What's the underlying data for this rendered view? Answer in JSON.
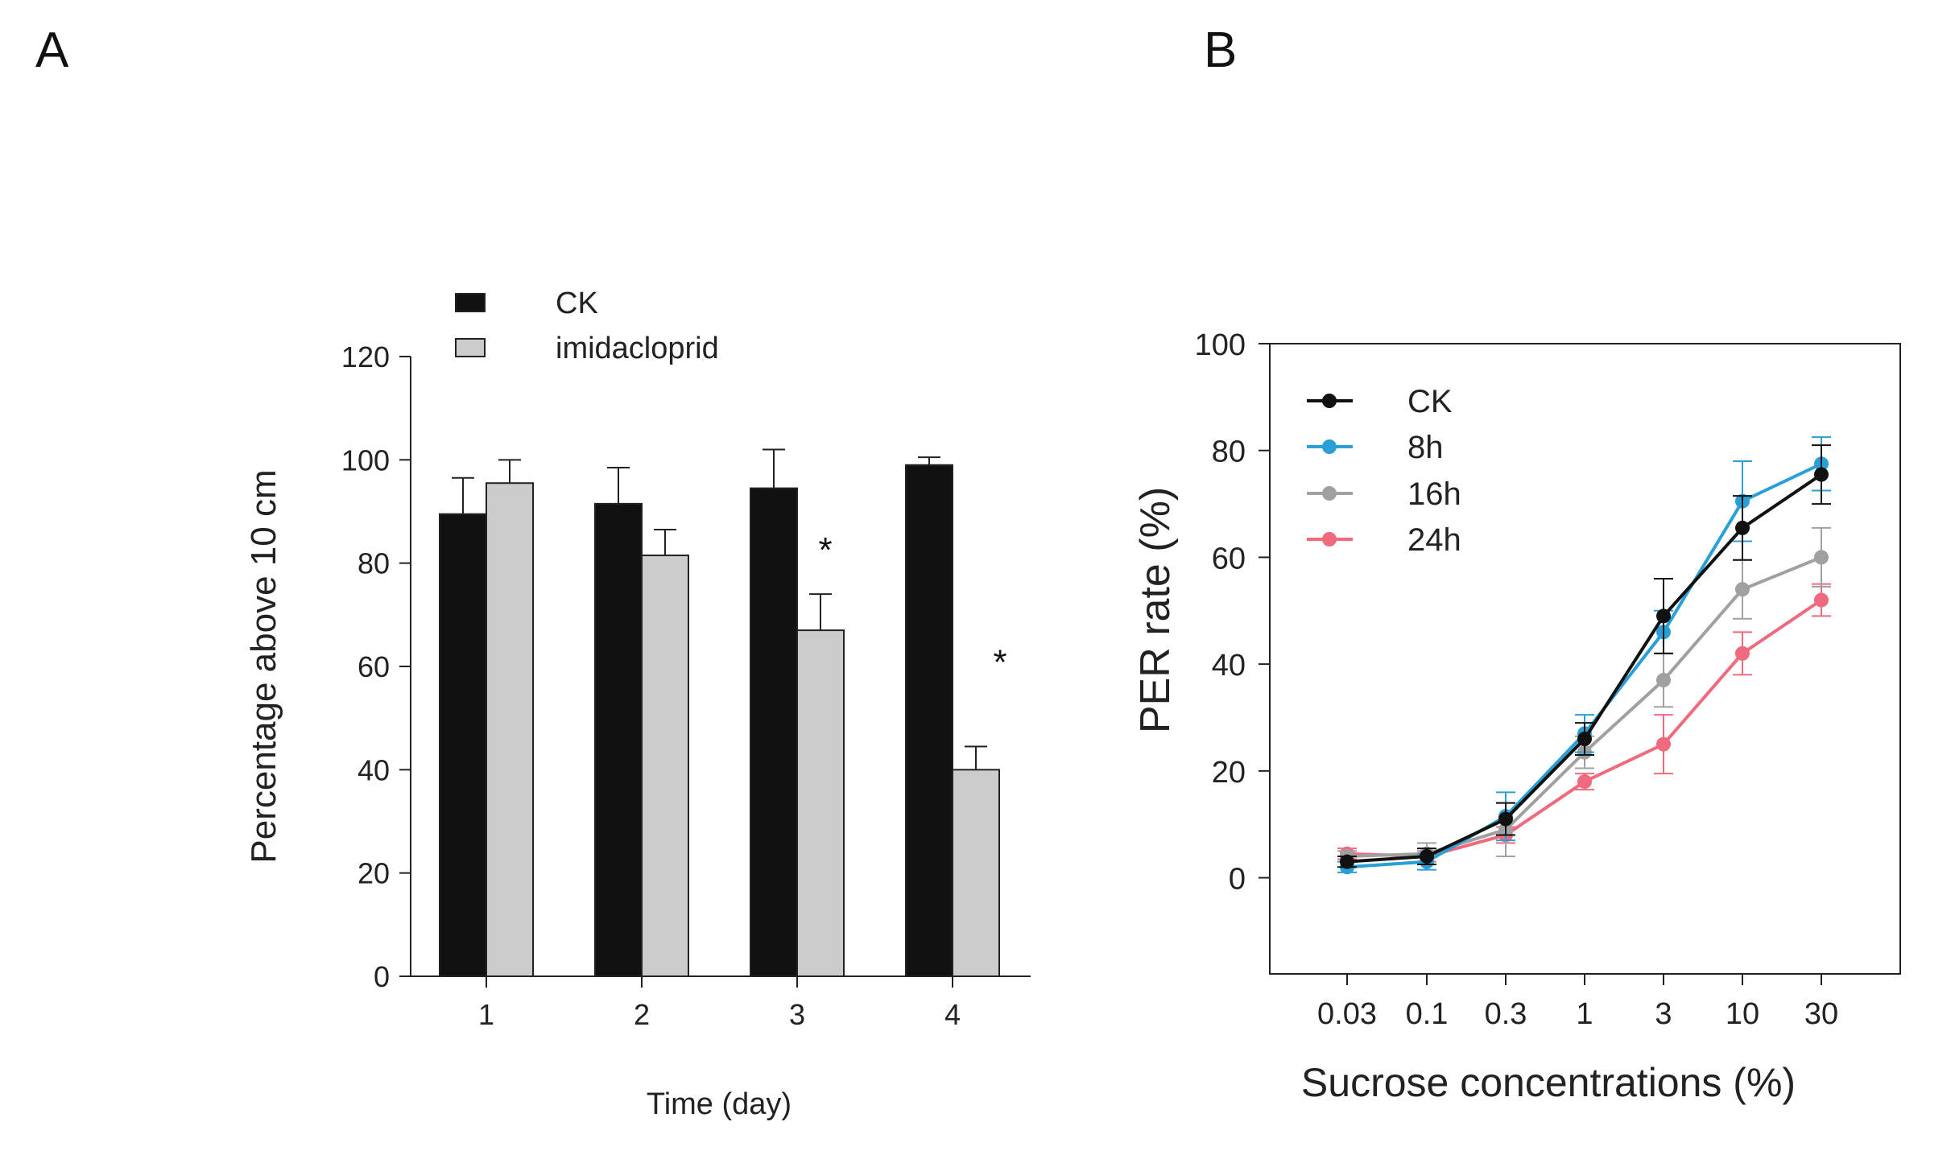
{
  "panels": {
    "a_label": "A",
    "b_label": "B"
  },
  "colors": {
    "ck_bar": "#111111",
    "imid_bar": "#cccccc",
    "ck_line": "#111111",
    "h8_line": "#2a9fd6",
    "h16_line": "#a0a0a0",
    "h24_line": "#ef6a7c"
  },
  "chart_data": [
    {
      "type": "bar",
      "panel": "A",
      "title": "",
      "xlabel": "Time (day)",
      "ylabel": "Percentage above 10 cm",
      "categories": [
        "1",
        "2",
        "3",
        "4"
      ],
      "ylim": [
        0,
        120
      ],
      "yticks": [
        0,
        20,
        40,
        60,
        80,
        100,
        120
      ],
      "legend_position": "top-left",
      "series": [
        {
          "name": "CK",
          "values": [
            89.5,
            91.5,
            94.5,
            99
          ],
          "errors": [
            7,
            7,
            7.5,
            1.5
          ]
        },
        {
          "name": "imidacloprid",
          "values": [
            95.5,
            81.5,
            67,
            40
          ],
          "errors": [
            4.5,
            5,
            7,
            4.5
          ]
        }
      ],
      "annotations": [
        {
          "category": "3",
          "text": "*"
        },
        {
          "category": "4",
          "text": "*"
        }
      ],
      "grid": false
    },
    {
      "type": "line",
      "panel": "B",
      "title": "",
      "xlabel": "Sucrose concentrations (%)",
      "ylabel": "PER rate (%)",
      "categories": [
        "0.03",
        "0.1",
        "0.3",
        "1",
        "3",
        "10",
        "30"
      ],
      "ylim": [
        -18,
        100
      ],
      "yticks": [
        0,
        20,
        40,
        60,
        80,
        100
      ],
      "legend_position": "top-left",
      "series": [
        {
          "name": "CK",
          "values": [
            3,
            4,
            11,
            26,
            49,
            65.5,
            75.5
          ],
          "errors": [
            1,
            1.5,
            3,
            3,
            7,
            6,
            5.5
          ]
        },
        {
          "name": "8h",
          "values": [
            2,
            3,
            11.5,
            27,
            46,
            70.5,
            77.5
          ],
          "errors": [
            1,
            1.5,
            4.5,
            3.5,
            4,
            7.5,
            5
          ]
        },
        {
          "name": "16h",
          "values": [
            4,
            4.5,
            9,
            23.5,
            37,
            54,
            60
          ],
          "errors": [
            1,
            2,
            5,
            3,
            5,
            5.5,
            5.5
          ]
        },
        {
          "name": "24h",
          "values": [
            4.5,
            4,
            8,
            18,
            25,
            42,
            52
          ],
          "errors": [
            1,
            1,
            1.5,
            1.5,
            5.5,
            4,
            3
          ]
        }
      ],
      "grid": false
    }
  ]
}
